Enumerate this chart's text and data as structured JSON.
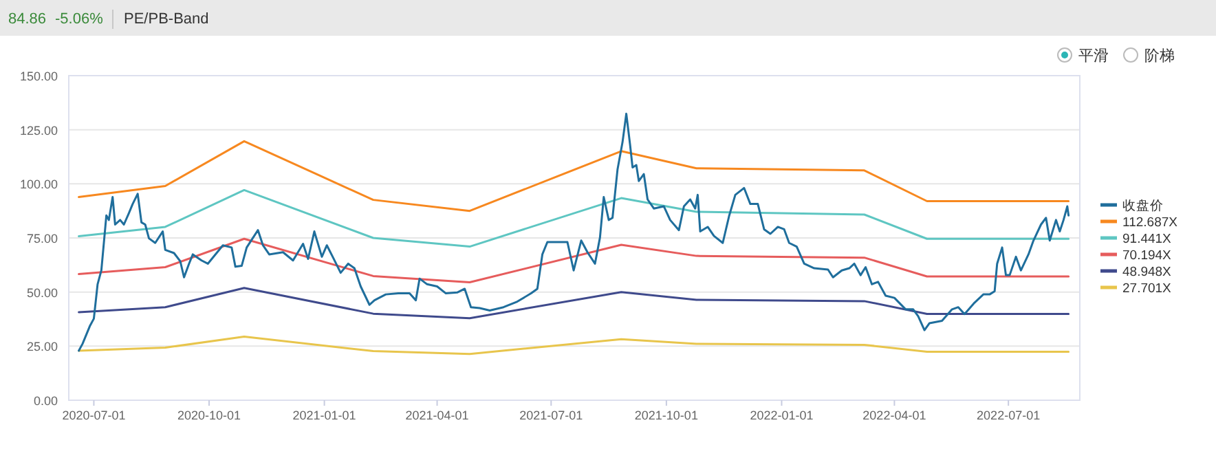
{
  "chart_data": {
    "type": "line",
    "title": "PE/PB-Band",
    "annotations": [
      "84.86",
      "-5.06%",
      "平滑",
      "阶梯"
    ],
    "xlim": [
      "2020-06-11",
      "2022-08-27"
    ],
    "xticks": [
      {
        "value": "2020-07-01",
        "label": "2020-07-01"
      },
      {
        "value": "2020-10-01",
        "label": "2020-10-01"
      },
      {
        "value": "2021-01-01",
        "label": "2021-01-01"
      },
      {
        "value": "2021-04-01",
        "label": "2021-04-01"
      },
      {
        "value": "2021-07-01",
        "label": "2021-07-01"
      },
      {
        "value": "2021-10-01",
        "label": "2021-10-01"
      },
      {
        "value": "2022-01-01",
        "label": "2022-01-01"
      },
      {
        "value": "2022-04-01",
        "label": "2022-04-01"
      },
      {
        "value": "2022-07-01",
        "label": "2022-07-01"
      }
    ],
    "ylim": [
      0,
      150
    ],
    "yticks": [
      {
        "value": 0,
        "label": "0.00"
      },
      {
        "value": 25,
        "label": "25.00"
      },
      {
        "value": 50,
        "label": "50.00"
      },
      {
        "value": 75,
        "label": "75.00"
      },
      {
        "value": 100,
        "label": "100.00"
      },
      {
        "value": 125,
        "label": "125.00"
      },
      {
        "value": 150,
        "label": "150.00"
      }
    ],
    "grid": "y",
    "legend": "right",
    "series": [
      {
        "name": "收盘价",
        "color": "#1f6e9c",
        "x": [
          "2020-06-19",
          "2020-06-22",
          "2020-06-28",
          "2020-07-01",
          "2020-07-04",
          "2020-07-07",
          "2020-07-11",
          "2020-07-13",
          "2020-07-16",
          "2020-07-18",
          "2020-07-22",
          "2020-07-25",
          "2020-07-29",
          "2020-08-01",
          "2020-08-05",
          "2020-08-08",
          "2020-08-11",
          "2020-08-14",
          "2020-08-19",
          "2020-08-25",
          "2020-08-27",
          "2020-09-03",
          "2020-09-08",
          "2020-09-11",
          "2020-09-15",
          "2020-09-18",
          "2020-09-25",
          "2020-09-30",
          "2020-10-12",
          "2020-10-19",
          "2020-10-22",
          "2020-10-27",
          "2020-10-31",
          "2020-11-09",
          "2020-11-13",
          "2020-11-18",
          "2020-11-29",
          "2020-12-07",
          "2020-12-15",
          "2020-12-19",
          "2020-12-24",
          "2020-12-30",
          "2021-01-03",
          "2021-01-08",
          "2021-01-14",
          "2021-01-20",
          "2021-01-25",
          "2021-01-30",
          "2021-02-06",
          "2021-02-10",
          "2021-02-19",
          "2021-03-01",
          "2021-03-10",
          "2021-03-15",
          "2021-03-18",
          "2021-03-24",
          "2021-04-01",
          "2021-04-08",
          "2021-04-17",
          "2021-04-23",
          "2021-04-28",
          "2021-05-05",
          "2021-05-13",
          "2021-05-24",
          "2021-06-04",
          "2021-06-15",
          "2021-06-20",
          "2021-06-24",
          "2021-06-28",
          "2021-07-14",
          "2021-07-19",
          "2021-07-25",
          "2021-07-30",
          "2021-08-05",
          "2021-08-09",
          "2021-08-12",
          "2021-08-16",
          "2021-08-19",
          "2021-08-23",
          "2021-08-27",
          "2021-08-30",
          "2021-09-02",
          "2021-09-04",
          "2021-09-07",
          "2021-09-09",
          "2021-09-13",
          "2021-09-16",
          "2021-09-21",
          "2021-09-29",
          "2021-10-04",
          "2021-10-11",
          "2021-10-15",
          "2021-10-20",
          "2021-10-24",
          "2021-10-26",
          "2021-10-28",
          "2021-11-03",
          "2021-11-08",
          "2021-11-15",
          "2021-11-20",
          "2021-11-25",
          "2021-12-02",
          "2021-12-07",
          "2021-12-13",
          "2021-12-18",
          "2021-12-23",
          "2021-12-29",
          "2022-01-03",
          "2022-01-07",
          "2022-01-13",
          "2022-01-19",
          "2022-01-27",
          "2022-02-07",
          "2022-02-11",
          "2022-02-18",
          "2022-02-24",
          "2022-02-28",
          "2022-03-05",
          "2022-03-09",
          "2022-03-14",
          "2022-03-19",
          "2022-03-25",
          "2022-04-01",
          "2022-04-10",
          "2022-04-16",
          "2022-04-20",
          "2022-04-25",
          "2022-04-29",
          "2022-05-09",
          "2022-05-17",
          "2022-05-22",
          "2022-05-27",
          "2022-06-04",
          "2022-06-11",
          "2022-06-16",
          "2022-06-20",
          "2022-06-22",
          "2022-06-26",
          "2022-06-29",
          "2022-07-02",
          "2022-07-07",
          "2022-07-11",
          "2022-07-17",
          "2022-07-21",
          "2022-07-27",
          "2022-07-31",
          "2022-08-03",
          "2022-08-08",
          "2022-08-11",
          "2022-08-14",
          "2022-08-17",
          "2022-08-18"
        ],
        "values": [
          22.9,
          26.1,
          34.5,
          37.7,
          53.6,
          60.0,
          85.4,
          83.3,
          93.9,
          81.2,
          83.3,
          81.2,
          86.5,
          90.7,
          95.4,
          82.2,
          81.2,
          74.8,
          72.7,
          78.0,
          69.5,
          68.0,
          64.2,
          56.8,
          63.1,
          67.4,
          64.6,
          63.1,
          71.6,
          70.6,
          61.7,
          62.1,
          70.6,
          78.6,
          71.6,
          67.4,
          68.4,
          64.6,
          72.3,
          65.3,
          78.0,
          66.3,
          71.6,
          65.9,
          58.9,
          63.1,
          61.0,
          52.6,
          44.1,
          46.2,
          48.9,
          49.4,
          49.4,
          46.2,
          56.2,
          53.6,
          52.6,
          49.4,
          49.8,
          51.5,
          43.0,
          42.6,
          41.5,
          43.0,
          45.6,
          49.4,
          51.5,
          67.4,
          73.1,
          73.1,
          60.0,
          73.8,
          68.4,
          63.1,
          75.2,
          93.9,
          83.3,
          84.3,
          106.6,
          119.3,
          132.4,
          118.2,
          107.6,
          108.7,
          101.3,
          104.5,
          92.8,
          88.6,
          89.6,
          83.3,
          78.6,
          89.6,
          92.8,
          88.6,
          94.9,
          78.0,
          80.1,
          75.9,
          72.7,
          85.0,
          94.9,
          98.1,
          90.7,
          90.7,
          79.0,
          76.9,
          80.1,
          79.0,
          72.7,
          71.0,
          63.1,
          61.0,
          60.4,
          56.8,
          60.0,
          61.0,
          63.1,
          57.8,
          61.5,
          53.6,
          54.7,
          48.3,
          47.3,
          42.0,
          42.0,
          38.8,
          32.4,
          35.6,
          36.7,
          42.0,
          43.0,
          39.8,
          45.1,
          48.9,
          48.9,
          50.4,
          63.1,
          70.6,
          57.8,
          57.8,
          66.3,
          60.0,
          67.4,
          73.8,
          81.2,
          84.3,
          73.8,
          83.3,
          78.0,
          83.3,
          89.6,
          85.4
        ]
      },
      {
        "name": "112.687X",
        "color": "#f7881f",
        "x": [
          "2020-06-19",
          "2020-08-27",
          "2020-10-29",
          "2021-02-09",
          "2021-04-27",
          "2021-08-26",
          "2021-10-25",
          "2022-03-08",
          "2022-04-27",
          "2022-08-18"
        ],
        "values": [
          93.9,
          99.0,
          119.7,
          92.6,
          87.5,
          115.1,
          107.2,
          106.2,
          92.0,
          92.0
        ]
      },
      {
        "name": "91.441X",
        "color": "#5ec6c2",
        "x": [
          "2020-06-19",
          "2020-08-27",
          "2020-10-29",
          "2021-02-09",
          "2021-04-27",
          "2021-08-26",
          "2021-10-25",
          "2022-03-08",
          "2022-04-27",
          "2022-08-18"
        ],
        "values": [
          75.8,
          80.1,
          97.1,
          75.0,
          71.0,
          93.4,
          87.1,
          85.8,
          74.6,
          74.6
        ]
      },
      {
        "name": "70.194X",
        "color": "#e65c5c",
        "x": [
          "2020-06-19",
          "2020-08-27",
          "2020-10-29",
          "2021-02-09",
          "2021-04-27",
          "2021-08-26",
          "2021-10-25",
          "2022-03-08",
          "2022-04-27",
          "2022-08-18"
        ],
        "values": [
          58.3,
          61.5,
          74.6,
          57.4,
          54.5,
          71.8,
          66.7,
          65.9,
          57.2,
          57.2
        ]
      },
      {
        "name": "48.948X",
        "color": "#3f4a8c",
        "x": [
          "2020-06-19",
          "2020-08-27",
          "2020-10-29",
          "2021-02-09",
          "2021-04-27",
          "2021-08-26",
          "2021-10-25",
          "2022-03-08",
          "2022-04-27",
          "2022-08-18"
        ],
        "values": [
          40.7,
          43.0,
          51.9,
          40.0,
          37.9,
          50.0,
          46.4,
          45.8,
          39.9,
          39.9
        ]
      },
      {
        "name": "27.701X",
        "color": "#e8c54c",
        "x": [
          "2020-06-19",
          "2020-08-27",
          "2020-10-29",
          "2021-02-09",
          "2021-04-27",
          "2021-08-26",
          "2021-10-25",
          "2022-03-08",
          "2022-04-27",
          "2022-08-18"
        ],
        "values": [
          22.9,
          24.3,
          29.4,
          22.7,
          21.4,
          28.2,
          26.1,
          25.6,
          22.4,
          22.4
        ]
      }
    ]
  }
}
